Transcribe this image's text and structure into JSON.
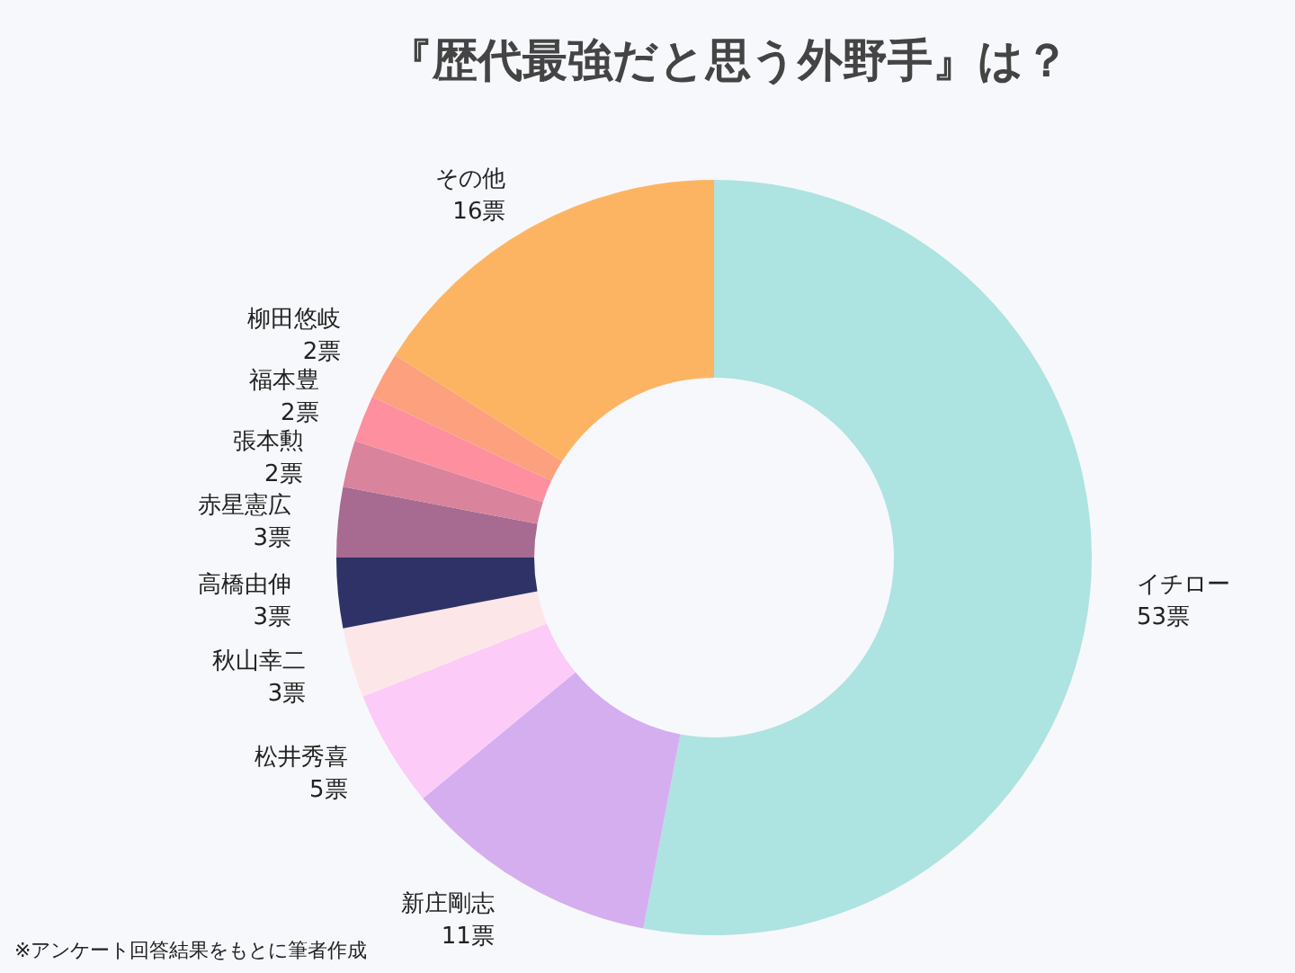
{
  "chart_data": {
    "type": "donut",
    "title": "『歴代最強だと思う外野手』は？",
    "categories": [
      "イチロー",
      "新庄剛志",
      "松井秀喜",
      "秋山幸二",
      "高橋由伸",
      "赤星憲広",
      "張本勲",
      "福本豊",
      "柳田悠岐",
      "その他"
    ],
    "values": [
      53,
      11,
      5,
      3,
      3,
      3,
      2,
      2,
      2,
      16
    ],
    "value_labels": [
      "53票",
      "11票",
      "5票",
      "3票",
      "3票",
      "3票",
      "2票",
      "2票",
      "2票",
      "16票"
    ],
    "colors": [
      "#ade3e0",
      "#d5aef0",
      "#fccbf7",
      "#fde6e8",
      "#2e3266",
      "#a76b92",
      "#d9839c",
      "#fd8f9f",
      "#fca07e",
      "#fdb462"
    ],
    "annotations": [
      "※アンケート回答結果をもとに筆者作成"
    ]
  }
}
